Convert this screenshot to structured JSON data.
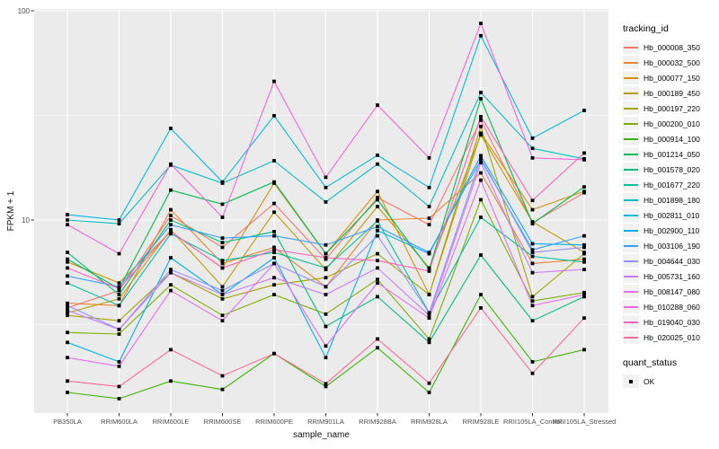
{
  "chart_data": {
    "type": "line",
    "title": "",
    "xlabel": "sample_name",
    "ylabel": "FPKM + 1",
    "y_scale": "log10",
    "ylim": [
      1.19,
      102
    ],
    "y_ticks": [
      "10",
      "100"
    ],
    "y_tick_values": [
      10,
      100
    ],
    "y_minor_values": [
      3.1623,
      31.623
    ],
    "grid": true,
    "panel_bg": "#EBEBEB",
    "grid_color": "#FFFFFF",
    "tick_color": "#333333",
    "tick_label_color": "#4D4D4D",
    "point_shape": "filled-square",
    "point_color": "#000000",
    "legend_title": "tracking_id",
    "legend_position": "right",
    "legend2": {
      "title": "quant_status",
      "items": [
        "OK"
      ]
    },
    "categories": [
      "PB350LA",
      "RRIM600LA",
      "RRIM600LE",
      "RRIM600SE",
      "RRIM600PE",
      "RRIM901LA",
      "RRIM928BA",
      "RRIM928LA",
      "RRIM928LE",
      "RRII105LA_Control",
      "RRII105LA_Stressed"
    ],
    "series": [
      {
        "name": "Hb_000008_350",
        "color": "#F8766D",
        "values": [
          3.8,
          4.6,
          10.5,
          7.4,
          12.0,
          6.5,
          12.8,
          9.5,
          30.0,
          9.7,
          13.5
        ]
      },
      {
        "name": "Hb_000032_500",
        "color": "#EA8331",
        "values": [
          4.0,
          3.9,
          11.2,
          6.2,
          7.4,
          4.8,
          10.0,
          10.2,
          16.8,
          6.2,
          6.5
        ]
      },
      {
        "name": "Hb_000077_150",
        "color": "#D89000",
        "values": [
          6.3,
          5.0,
          8.8,
          5.9,
          15.0,
          6.9,
          13.7,
          4.4,
          26.0,
          11.2,
          13.7
        ]
      },
      {
        "name": "Hb_000189_450",
        "color": "#C09B00",
        "values": [
          3.6,
          4.2,
          9.0,
          4.8,
          10.9,
          5.8,
          11.6,
          5.9,
          25.5,
          9.8,
          7.0
        ]
      },
      {
        "name": "Hb_000197_220",
        "color": "#A3A500",
        "values": [
          3.5,
          3.3,
          5.6,
          4.2,
          4.9,
          5.3,
          6.9,
          4.4,
          28.0,
          4.3,
          6.9
        ]
      },
      {
        "name": "Hb_000200_010",
        "color": "#7CAE00",
        "values": [
          2.9,
          2.85,
          4.9,
          3.5,
          4.4,
          3.55,
          5.2,
          2.7,
          12.5,
          4.1,
          4.5
        ]
      },
      {
        "name": "Hb_000914_100",
        "color": "#39B600",
        "values": [
          1.5,
          1.4,
          1.7,
          1.55,
          2.3,
          1.6,
          2.45,
          1.5,
          4.4,
          2.1,
          2.4
        ]
      },
      {
        "name": "Hb_001214_050",
        "color": "#00BB4E",
        "values": [
          6.5,
          4.7,
          13.9,
          11.9,
          15.2,
          6.9,
          12.5,
          5.8,
          38.0,
          9.6,
          14.4
        ]
      },
      {
        "name": "Hb_001578_020",
        "color": "#00BF7D",
        "values": [
          7.0,
          4.4,
          10.0,
          7.8,
          8.8,
          3.1,
          4.3,
          2.6,
          6.8,
          3.3,
          4.3
        ]
      },
      {
        "name": "Hb_001677_220",
        "color": "#00C1A3",
        "values": [
          5.0,
          3.9,
          8.6,
          6.4,
          7.0,
          5.9,
          9.9,
          3.6,
          10.3,
          6.7,
          6.3
        ]
      },
      {
        "name": "Hb_001898_180",
        "color": "#00BFC4",
        "values": [
          10.0,
          9.6,
          18.3,
          15.0,
          19.2,
          12.2,
          18.5,
          11.6,
          40.7,
          22.0,
          19.6
        ]
      },
      {
        "name": "Hb_002811_010",
        "color": "#00BAE0",
        "values": [
          10.6,
          10.0,
          27.4,
          15.2,
          31.5,
          14.3,
          20.4,
          14.3,
          76.0,
          24.6,
          33.4
        ]
      },
      {
        "name": "Hb_002900_110",
        "color": "#00B0F6",
        "values": [
          2.6,
          2.1,
          6.6,
          4.4,
          6.6,
          2.2,
          8.9,
          6.9,
          20.3,
          7.7,
          7.6
        ]
      },
      {
        "name": "Hb_003106_190",
        "color": "#35A2FF",
        "values": [
          5.4,
          4.8,
          9.5,
          8.2,
          8.4,
          7.6,
          9.3,
          7.0,
          19.4,
          7.2,
          8.4
        ]
      },
      {
        "name": "Hb_004644_030",
        "color": "#9590FF",
        "values": [
          3.9,
          3.0,
          5.8,
          4.6,
          6.2,
          4.8,
          8.4,
          3.6,
          19.8,
          7.0,
          7.4
        ]
      },
      {
        "name": "Hb_005731_160",
        "color": "#C77CFF",
        "values": [
          3.7,
          3.0,
          5.6,
          4.4,
          5.3,
          4.4,
          5.9,
          3.5,
          18.8,
          5.6,
          5.8
        ]
      },
      {
        "name": "Hb_008147_080",
        "color": "#E76BF3",
        "values": [
          2.2,
          2.0,
          4.6,
          3.3,
          6.2,
          2.5,
          5.0,
          3.4,
          15.5,
          3.9,
          4.4
        ]
      },
      {
        "name": "Hb_010288_060",
        "color": "#FA62DB",
        "values": [
          9.5,
          6.9,
          18.5,
          10.3,
          46.0,
          16.0,
          35.4,
          19.8,
          87.0,
          19.8,
          19.4
        ]
      },
      {
        "name": "Hb_019040_030",
        "color": "#FF62BC",
        "values": [
          5.9,
          4.7,
          8.8,
          5.9,
          7.2,
          6.6,
          6.4,
          5.7,
          31.2,
          12.4,
          20.9
        ]
      },
      {
        "name": "Hb_020025_010",
        "color": "#FF6A98",
        "values": [
          1.7,
          1.6,
          2.4,
          1.8,
          2.3,
          1.65,
          2.7,
          1.66,
          3.8,
          1.85,
          3.4
        ]
      }
    ]
  }
}
